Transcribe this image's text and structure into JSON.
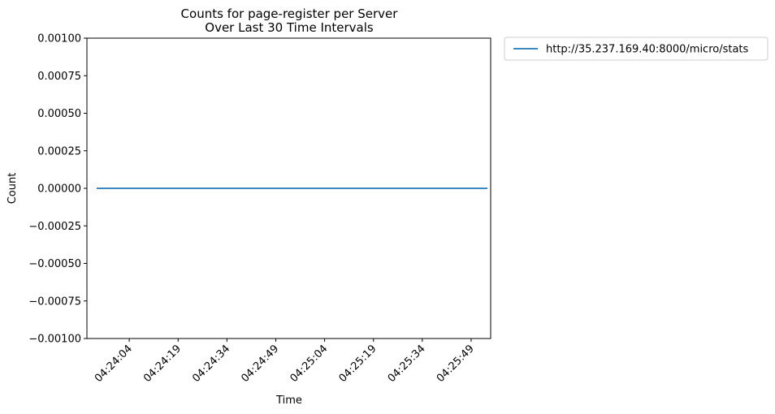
{
  "chart_data": {
    "type": "line",
    "title": [
      "Counts for page-register per Server",
      "Over Last 30 Time Intervals"
    ],
    "xlabel": "Time",
    "ylabel": "Count",
    "ylim": [
      -0.001,
      0.001
    ],
    "yticks": [
      -0.001,
      -0.00075,
      -0.0005,
      -0.00025,
      0,
      0.00025,
      0.0005,
      0.00075,
      0.001
    ],
    "ytick_labels": [
      "−0.00100",
      "−0.00075",
      "−0.00050",
      "−0.00025",
      "0.00000",
      "0.00025",
      "0.00050",
      "0.00075",
      "0.00100"
    ],
    "x": [
      "04:23:54",
      "04:23:59",
      "04:24:04",
      "04:24:09",
      "04:24:14",
      "04:24:19",
      "04:24:24",
      "04:24:29",
      "04:24:34",
      "04:24:39",
      "04:24:44",
      "04:24:49",
      "04:24:54",
      "04:24:59",
      "04:25:04",
      "04:25:09",
      "04:25:14",
      "04:25:19",
      "04:25:24",
      "04:25:29",
      "04:25:34",
      "04:25:39",
      "04:25:44",
      "04:25:49",
      "04:25:54"
    ],
    "xlim": [
      "04:23:51",
      "04:25:55"
    ],
    "xticks": [
      "04:24:04",
      "04:24:19",
      "04:24:34",
      "04:24:49",
      "04:25:04",
      "04:25:19",
      "04:25:34",
      "04:25:49"
    ],
    "series": [
      {
        "name": "http://35.237.169.40:8000/micro/stats",
        "color": "#1f77b4",
        "values": [
          0,
          0,
          0,
          0,
          0,
          0,
          0,
          0,
          0,
          0,
          0,
          0,
          0,
          0,
          0,
          0,
          0,
          0,
          0,
          0,
          0,
          0,
          0,
          0,
          0
        ]
      }
    ],
    "grid": false,
    "legend_position": "outside-top-right"
  }
}
